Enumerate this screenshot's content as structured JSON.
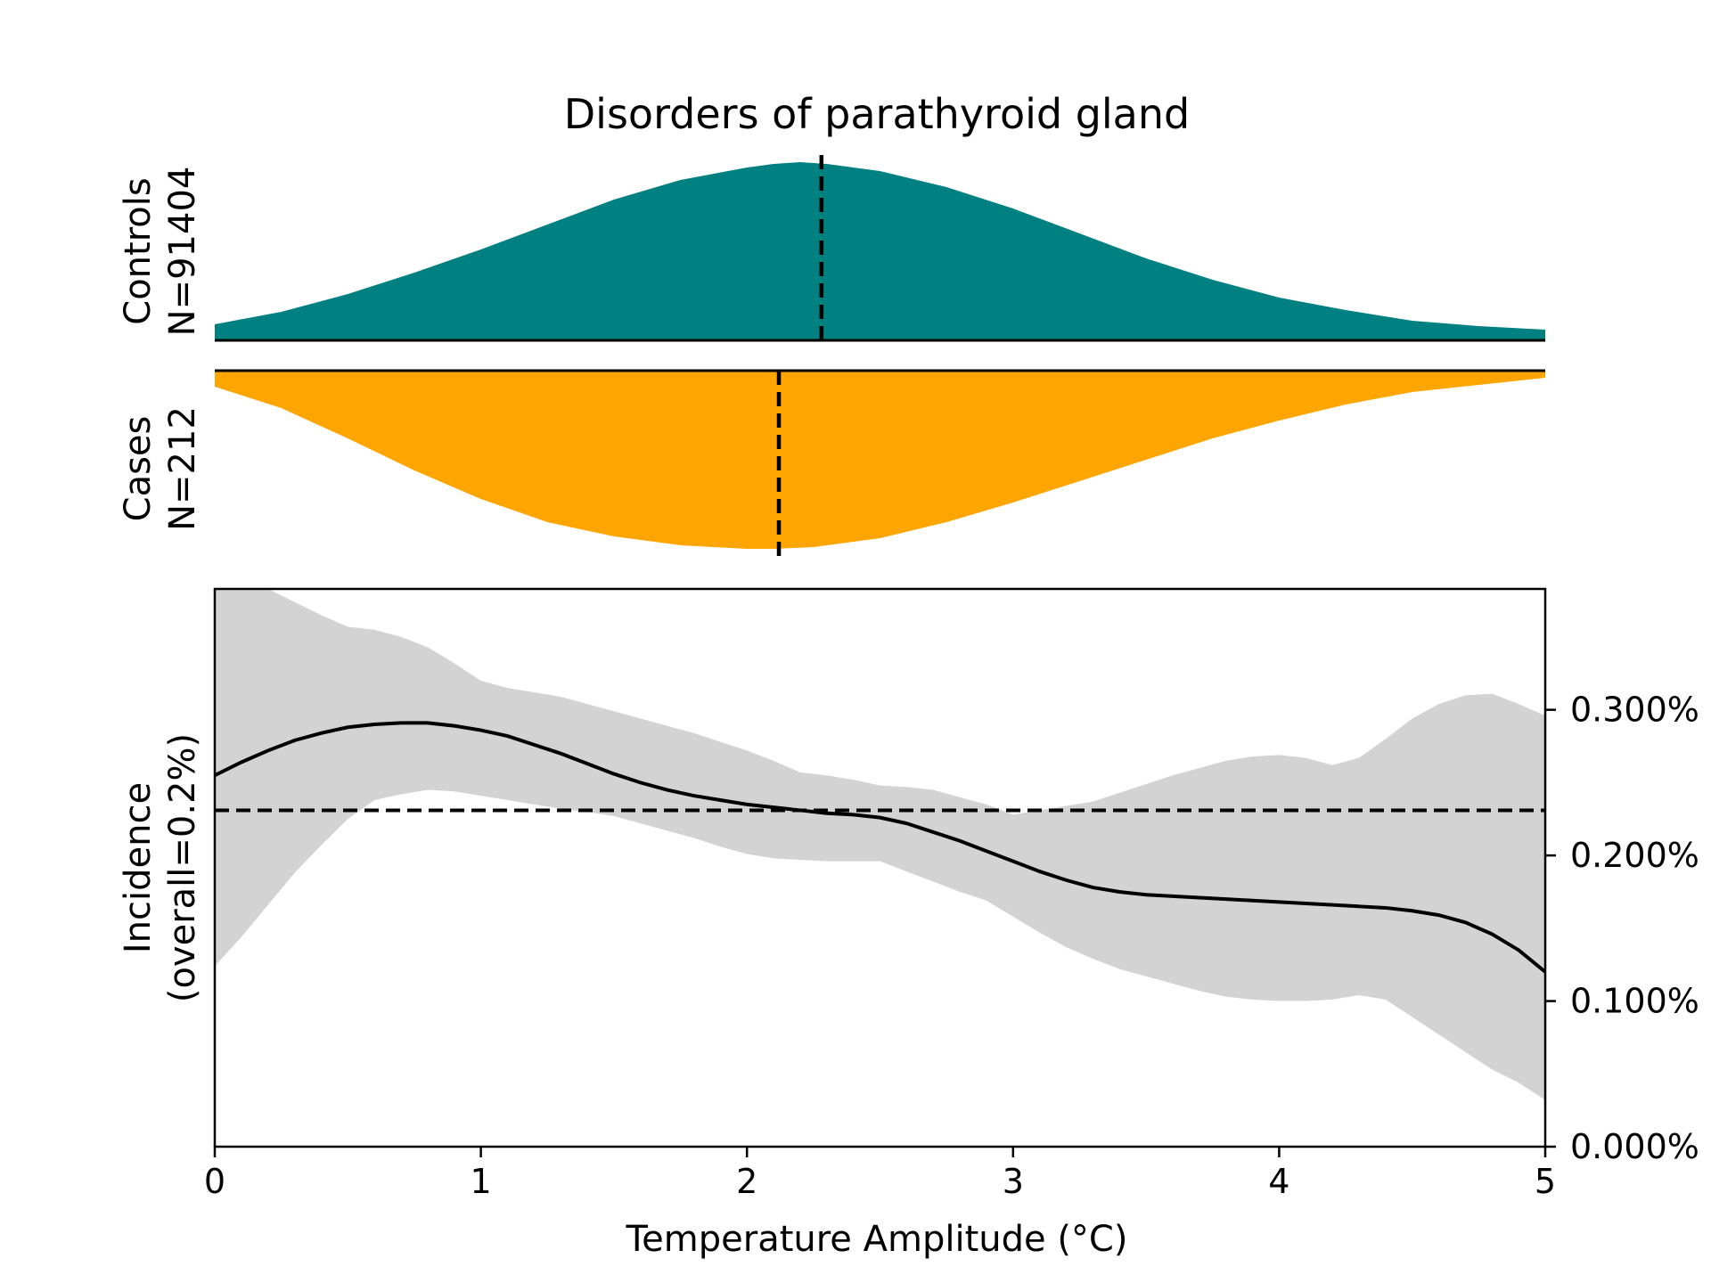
{
  "chart_data": [
    {
      "type": "area",
      "panel": "distributions",
      "title": "Disorders of parathyroid gland",
      "x_range": [
        0,
        5
      ],
      "groups": [
        {
          "label_line1": "Controls",
          "label_line2": "N=91404",
          "color": "#008080",
          "median": 2.28,
          "x": [
            0,
            0.25,
            0.5,
            0.75,
            1.0,
            1.25,
            1.5,
            1.75,
            2.0,
            2.1,
            2.2,
            2.3,
            2.5,
            2.75,
            3.0,
            3.25,
            3.5,
            3.75,
            4.0,
            4.25,
            4.5,
            4.75,
            5.0
          ],
          "density": [
            0.09,
            0.16,
            0.26,
            0.38,
            0.51,
            0.65,
            0.79,
            0.9,
            0.97,
            0.99,
            1.0,
            0.99,
            0.95,
            0.86,
            0.74,
            0.6,
            0.46,
            0.34,
            0.24,
            0.17,
            0.11,
            0.08,
            0.06
          ]
        },
        {
          "label_line1": "Cases",
          "label_line2": "N=212",
          "color": "#ffa500",
          "median": 2.12,
          "x": [
            0,
            0.25,
            0.5,
            0.75,
            1.0,
            1.25,
            1.5,
            1.75,
            2.0,
            2.1,
            2.25,
            2.5,
            2.75,
            3.0,
            3.25,
            3.5,
            3.75,
            4.0,
            4.25,
            4.5,
            4.75,
            5.0
          ],
          "density": [
            0.09,
            0.21,
            0.38,
            0.56,
            0.72,
            0.85,
            0.93,
            0.98,
            1.0,
            1.0,
            0.99,
            0.94,
            0.85,
            0.74,
            0.62,
            0.5,
            0.38,
            0.28,
            0.19,
            0.12,
            0.08,
            0.04
          ]
        }
      ]
    },
    {
      "type": "line",
      "panel": "incidence",
      "xlabel": "Temperature Amplitude (°C)",
      "ylabel_line1": "Incidence",
      "ylabel_line2": "(overall=0.2%)",
      "xlim": [
        0,
        5
      ],
      "ylim": [
        0,
        0.00383
      ],
      "x_ticks": [
        0,
        1,
        2,
        3,
        4,
        5
      ],
      "y_ticks": [
        0,
        0.001,
        0.002,
        0.003
      ],
      "y_tick_labels": [
        "0.000%",
        "0.100%",
        "0.200%",
        "0.300%"
      ],
      "overall_rate": 0.00231,
      "band_color": "#d3d3d3",
      "line_color": "#000000",
      "x": [
        0,
        0.1,
        0.2,
        0.3,
        0.4,
        0.5,
        0.6,
        0.7,
        0.8,
        0.9,
        1.0,
        1.1,
        1.2,
        1.3,
        1.4,
        1.5,
        1.6,
        1.7,
        1.8,
        1.9,
        2.0,
        2.1,
        2.2,
        2.3,
        2.4,
        2.5,
        2.6,
        2.7,
        2.8,
        2.9,
        3.0,
        3.1,
        3.2,
        3.3,
        3.4,
        3.5,
        3.6,
        3.7,
        3.8,
        3.9,
        4.0,
        4.1,
        4.2,
        4.3,
        4.4,
        4.5,
        4.6,
        4.7,
        4.8,
        4.9,
        5.0
      ],
      "estimate": [
        0.00255,
        0.00264,
        0.00272,
        0.00279,
        0.00284,
        0.00288,
        0.0029,
        0.00291,
        0.00291,
        0.00289,
        0.00286,
        0.00282,
        0.00276,
        0.0027,
        0.00263,
        0.00256,
        0.0025,
        0.00245,
        0.00241,
        0.00238,
        0.00235,
        0.00233,
        0.00231,
        0.00229,
        0.00228,
        0.00226,
        0.00222,
        0.00216,
        0.0021,
        0.00203,
        0.00196,
        0.00189,
        0.00183,
        0.00178,
        0.00175,
        0.00173,
        0.00172,
        0.00171,
        0.0017,
        0.00169,
        0.00168,
        0.00167,
        0.00166,
        0.00165,
        0.00164,
        0.00162,
        0.00159,
        0.00154,
        0.00146,
        0.00135,
        0.0012
      ],
      "upper": [
        0.00395,
        0.00392,
        0.00383,
        0.00374,
        0.00365,
        0.00357,
        0.00355,
        0.0035,
        0.00343,
        0.00332,
        0.0032,
        0.00315,
        0.00312,
        0.00309,
        0.00304,
        0.00299,
        0.00294,
        0.00289,
        0.00284,
        0.00278,
        0.00272,
        0.00265,
        0.00257,
        0.00255,
        0.00252,
        0.00248,
        0.00247,
        0.00245,
        0.0024,
        0.00235,
        0.00228,
        0.00231,
        0.00234,
        0.00237,
        0.00243,
        0.00249,
        0.00255,
        0.0026,
        0.00265,
        0.00268,
        0.00269,
        0.00267,
        0.00262,
        0.00267,
        0.0028,
        0.00294,
        0.00304,
        0.0031,
        0.00311,
        0.00304,
        0.00296
      ],
      "lower": [
        0.00124,
        0.00144,
        0.00166,
        0.00188,
        0.00207,
        0.00225,
        0.00238,
        0.00242,
        0.00245,
        0.00244,
        0.00241,
        0.00238,
        0.00235,
        0.00232,
        0.0023,
        0.00227,
        0.00222,
        0.00217,
        0.00212,
        0.00206,
        0.00201,
        0.00198,
        0.00197,
        0.00196,
        0.00196,
        0.00196,
        0.00189,
        0.00182,
        0.00175,
        0.00169,
        0.00158,
        0.00147,
        0.00137,
        0.00129,
        0.00122,
        0.00117,
        0.00112,
        0.00107,
        0.00103,
        0.00101,
        0.001,
        0.001,
        0.00101,
        0.00104,
        0.00101,
        0.00089,
        0.00077,
        0.00065,
        0.00053,
        0.00044,
        0.00032
      ]
    }
  ]
}
